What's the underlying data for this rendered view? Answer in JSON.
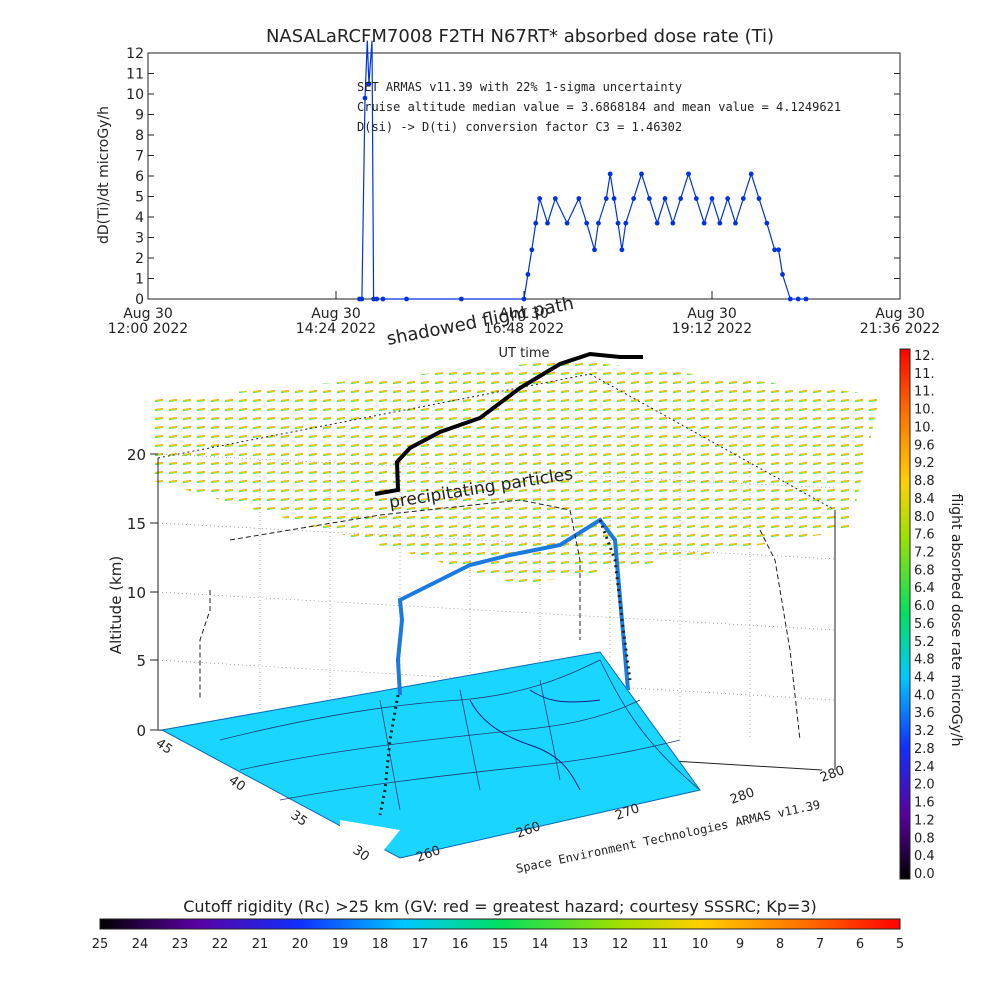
{
  "top_chart": {
    "title": "NASALaRCFM7008  F2TH N67RT* absorbed dose rate (Ti)",
    "ylabel": "dD(Ti)/dt microGy/h",
    "xlabel": "UT time",
    "notes": [
      "SET ARMAS v11.39 with 22% 1-sigma uncertainty",
      "Cruise altitude median value = 3.6868184 and mean value = 4.1249621",
      "D(si) -> D(ti) conversion factor C3 = 1.46302"
    ],
    "x_ticks": [
      {
        "line1": "Aug 30",
        "line2": "12:00 2022"
      },
      {
        "line1": "Aug 30",
        "line2": "14:24 2022"
      },
      {
        "line1": "Aug 30",
        "line2": "16:48 2022"
      },
      {
        "line1": "Aug 30",
        "line2": "19:12 2022"
      },
      {
        "line1": "Aug 30",
        "line2": "21:36 2022"
      }
    ],
    "y_ticks": [
      "0",
      "1",
      "2",
      "3",
      "4",
      "5",
      "6",
      "7",
      "8",
      "9",
      "10",
      "11",
      "12"
    ]
  },
  "chart_data": [
    {
      "type": "line",
      "title": "NASALaRCFM7008  F2TH N67RT* absorbed dose rate (Ti)",
      "xlabel": "UT time",
      "ylabel": "dD(Ti)/dt microGy/h",
      "xlim_hours_utc": [
        12.0,
        21.6
      ],
      "ylim": [
        0,
        12
      ],
      "series": [
        {
          "color": "#0033dd",
          "x_hours_utc": [
            14.7,
            14.73,
            14.77,
            14.8,
            14.82,
            14.86,
            14.88,
            14.92,
            15.0,
            15.3,
            16.0,
            16.8,
            16.85,
            16.9,
            16.95,
            17.0,
            17.1,
            17.2,
            17.35,
            17.5,
            17.6,
            17.7,
            17.75,
            17.85,
            17.9,
            17.95,
            18.0,
            18.05,
            18.1,
            18.2,
            18.3,
            18.4,
            18.5,
            18.6,
            18.7,
            18.8,
            18.9,
            19.0,
            19.1,
            19.2,
            19.3,
            19.4,
            19.5,
            19.6,
            19.7,
            19.8,
            19.9,
            20.0,
            20.05,
            20.1,
            20.2,
            20.3,
            20.4
          ],
          "y": [
            0,
            0,
            9.8,
            13,
            10.5,
            13,
            0,
            0,
            0,
            0,
            0,
            0,
            1.2,
            2.4,
            3.7,
            4.9,
            3.7,
            4.9,
            3.7,
            4.9,
            3.7,
            2.4,
            3.7,
            4.9,
            6.1,
            4.9,
            3.7,
            2.4,
            3.7,
            4.9,
            6.1,
            4.9,
            3.7,
            4.9,
            3.7,
            4.9,
            6.1,
            4.9,
            3.7,
            4.9,
            3.7,
            4.9,
            3.7,
            4.9,
            6.1,
            4.9,
            3.7,
            2.4,
            2.4,
            1.2,
            0,
            0,
            0
          ]
        }
      ]
    },
    {
      "type": "heatmap",
      "title": "Space Environment Technologies ARMAS v11.39",
      "zlabel": "Altitude (km)",
      "z_ticks": [
        "0",
        "5",
        "10",
        "15",
        "20"
      ],
      "lat_ticks": [
        "45",
        "40",
        "35",
        "30"
      ],
      "lon_ticks": [
        "260",
        "260",
        "270",
        "280",
        "280"
      ]
    }
  ],
  "annotations": {
    "shadowed": "shadowed flight path",
    "precip": "precipitating particles",
    "credit": "Space Environment Technologies ARMAS v11.39",
    "zlabel": "Altitude (km)"
  },
  "dose_colorbar": {
    "label": "flight absorbed dose rate microGy/h",
    "ticks": [
      "12.",
      "11.",
      "11.",
      "10.",
      "10.",
      "9.6",
      "9.2",
      "8.8",
      "8.4",
      "8.0",
      "7.6",
      "7.2",
      "6.8",
      "6.4",
      "6.0",
      "5.6",
      "5.2",
      "4.8",
      "4.4",
      "4.0",
      "3.6",
      "3.2",
      "2.8",
      "2.4",
      "2.0",
      "1.6",
      "1.2",
      "0.8",
      "0.4",
      "0.0"
    ]
  },
  "rigidity_colorbar": {
    "label": "Cutoff rigidity (Rc) >25 km (GV: red = greatest hazard; courtesy SSSRC; Kp=3)",
    "ticks": [
      "25",
      "24",
      "23",
      "22",
      "21",
      "20",
      "19",
      "18",
      "17",
      "16",
      "15",
      "14",
      "13",
      "12",
      "11",
      "10",
      "9",
      "8",
      "7",
      "6",
      "5"
    ]
  }
}
